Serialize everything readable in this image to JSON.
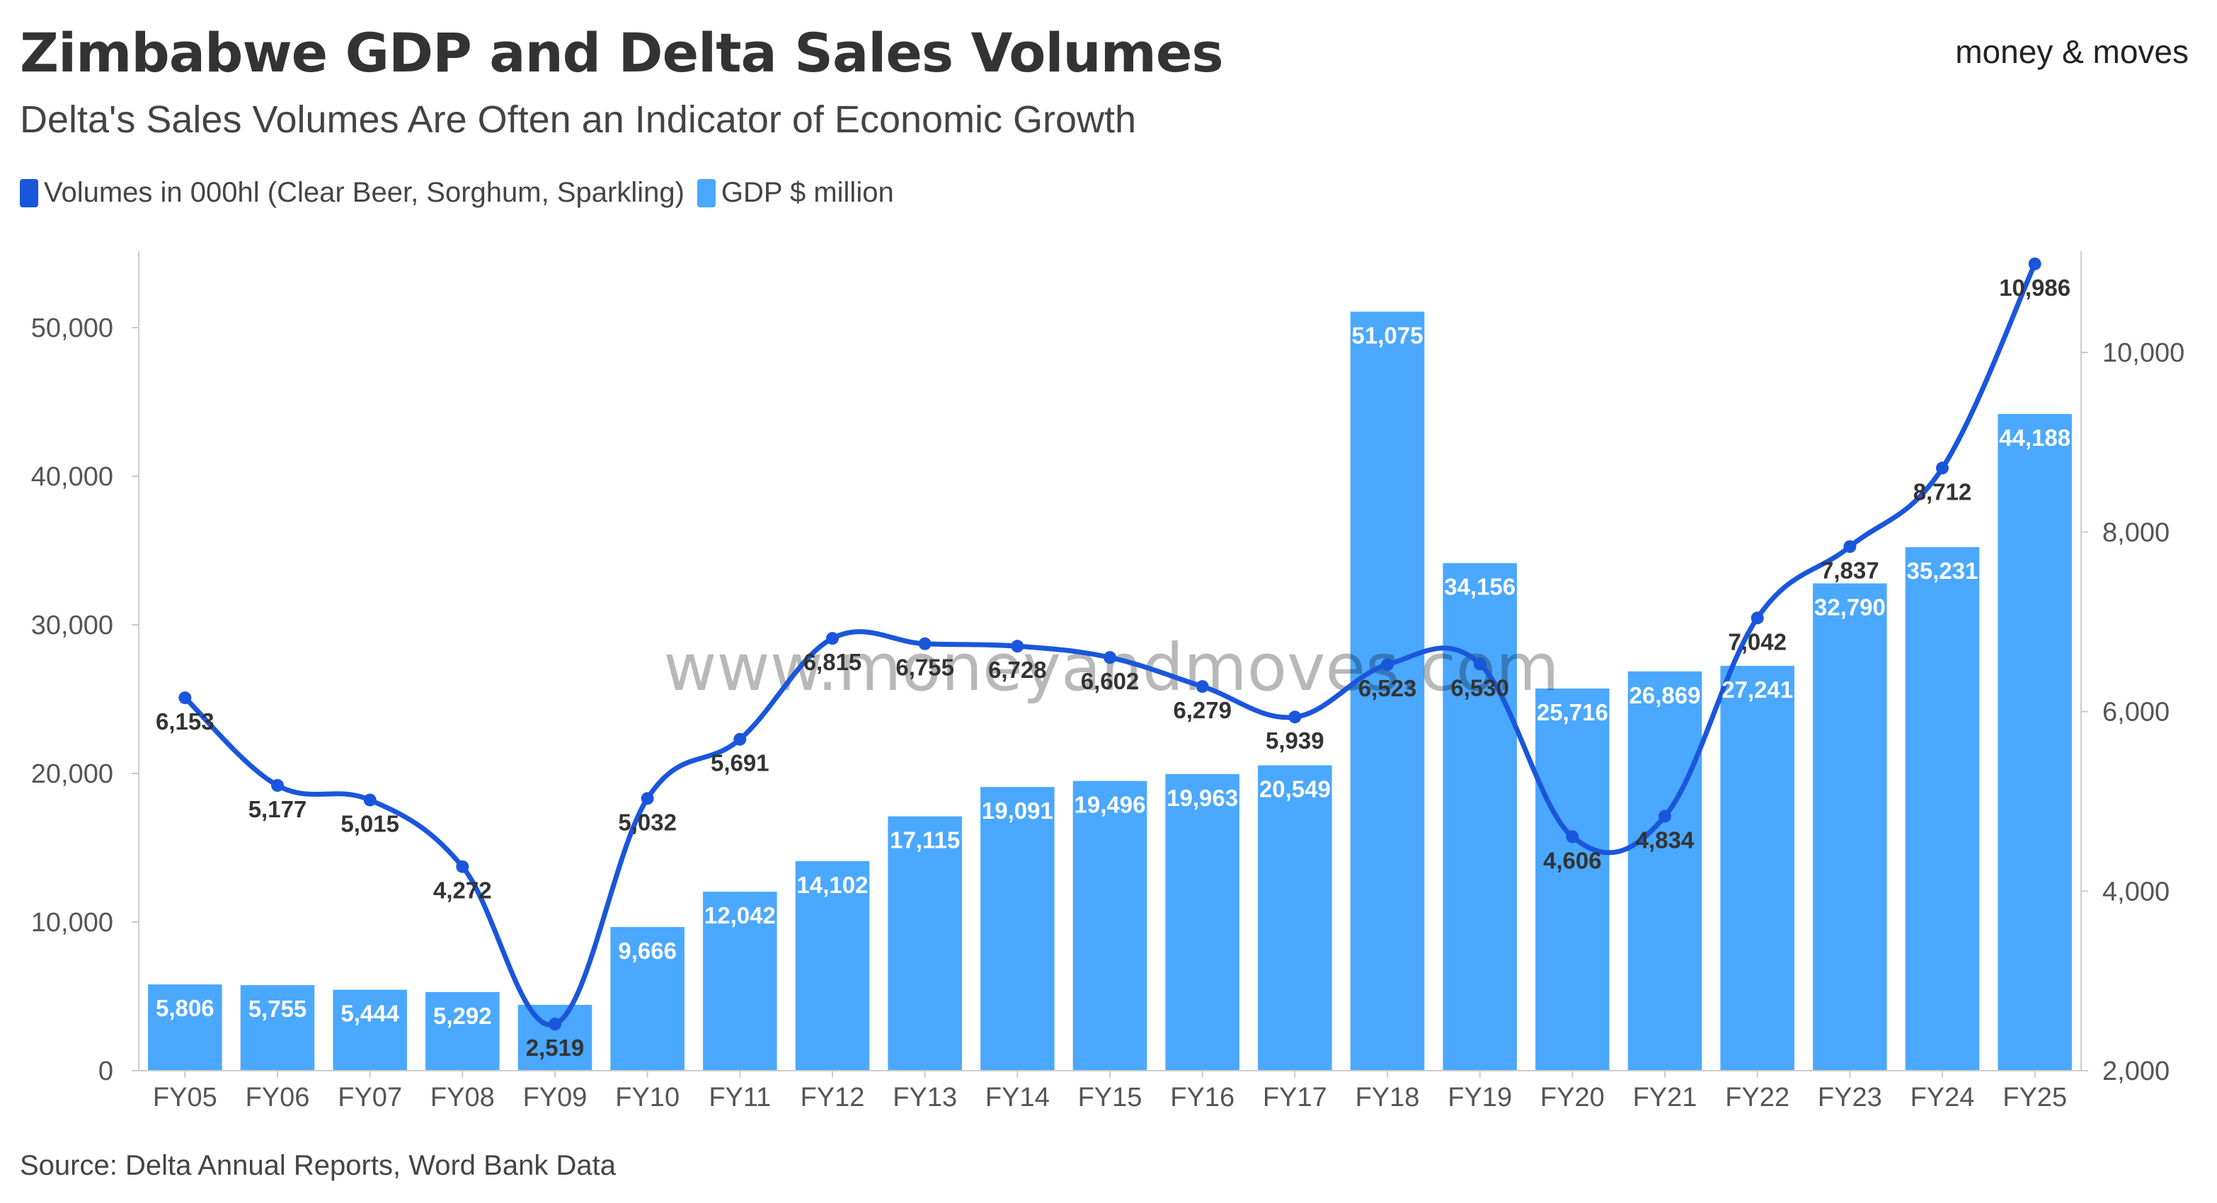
{
  "header": {
    "title": "Zimbabwe GDP and Delta Sales Volumes",
    "subtitle": "Delta's Sales Volumes Are Often an Indicator of Economic Growth",
    "brand": "money & moves"
  },
  "watermark": "www.moneyandmoves.com",
  "source": "Source: Delta Annual Reports, Word Bank Data",
  "colors": {
    "gdp_bar": "#4aa8ff",
    "volume_line": "#1a56db"
  },
  "chart_data": {
    "type": "bar",
    "categories": [
      "FY05",
      "FY06",
      "FY07",
      "FY08",
      "FY09",
      "FY10",
      "FY11",
      "FY12",
      "FY13",
      "FY14",
      "FY15",
      "FY16",
      "FY17",
      "FY18",
      "FY19",
      "FY20",
      "FY21",
      "FY22",
      "FY23",
      "FY24",
      "FY25"
    ],
    "series": [
      {
        "name": "GDP $ million",
        "type": "bar",
        "axis": "left",
        "values": [
          5806,
          5755,
          5444,
          5292,
          4432,
          9666,
          12042,
          14102,
          17115,
          19091,
          19496,
          19963,
          20549,
          51075,
          34156,
          25716,
          26869,
          27241,
          32790,
          35231,
          44188
        ],
        "labels": [
          "5,806",
          "5,755",
          "5,444",
          "5,292",
          "",
          "9,666",
          "12,042",
          "14,102",
          "17,115",
          "19,091",
          "19,496",
          "19,963",
          "20,549",
          "51,075",
          "34,156",
          "25,716",
          "26,869",
          "27,241",
          "32,790",
          "35,231",
          "44,188"
        ]
      },
      {
        "name": "Volumes in 000hl (Clear Beer, Sorghum, Sparkling)",
        "type": "line",
        "axis": "right",
        "values": [
          6153,
          5177,
          5015,
          4272,
          2519,
          5032,
          5691,
          6815,
          6755,
          6728,
          6602,
          6279,
          5939,
          6523,
          6530,
          4606,
          4834,
          7042,
          7837,
          8712,
          10986
        ],
        "labels": [
          "6,153",
          "5,177",
          "5,015",
          "4,272",
          "2,519",
          "5,032",
          "5,691",
          "6,815",
          "6,755",
          "6,728",
          "6,602",
          "6,279",
          "5,939",
          "6,523",
          "6,530",
          "4,606",
          "4,834",
          "7,042",
          "7,837",
          "8,712",
          "10,986"
        ]
      }
    ],
    "y_left": {
      "ylim": [
        0,
        55000
      ],
      "ticks": [
        0,
        10000,
        20000,
        30000,
        40000,
        50000
      ],
      "tick_labels": [
        "0",
        "10,000",
        "20,000",
        "30,000",
        "40,000",
        "50,000"
      ]
    },
    "y_right": {
      "ylim": [
        2000,
        11000
      ],
      "ticks": [
        2000,
        4000,
        6000,
        8000,
        10000
      ],
      "tick_labels": [
        "2,000",
        "4,000",
        "6,000",
        "8,000",
        "10,000"
      ]
    },
    "legend": "top-left",
    "grid": false
  }
}
